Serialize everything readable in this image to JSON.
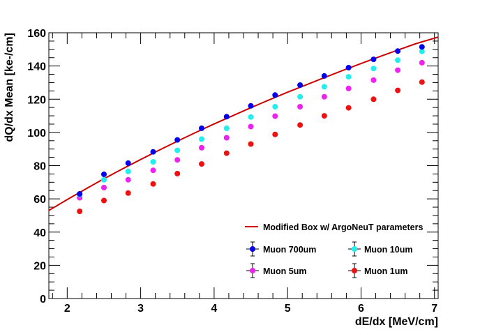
{
  "chart_data": {
    "type": "scatter",
    "xlabel": "dE/dx [MeV/cm]",
    "ylabel": "dQ/dx Mean [ke-/cm]",
    "xlim": [
      1.75,
      7.05
    ],
    "ylim": [
      0,
      160
    ],
    "x_ticks": [
      2,
      3,
      4,
      5,
      6,
      7
    ],
    "y_ticks": [
      0,
      20,
      40,
      60,
      80,
      100,
      120,
      140,
      160
    ],
    "x_tick_labels": [
      "2",
      "3",
      "4",
      "5",
      "6",
      "7"
    ],
    "y_tick_labels": [
      "0",
      "20",
      "40",
      "60",
      "80",
      "100",
      "120",
      "140",
      "160"
    ],
    "grid": false,
    "legend_position": "bottom-right",
    "model": {
      "name": "Modified Box w/ ArgoNeuT parameters",
      "color": "#cc0000",
      "x": [
        1.75,
        2.0,
        2.25,
        2.5,
        2.75,
        3.0,
        3.25,
        3.5,
        3.75,
        4.0,
        4.25,
        4.5,
        4.75,
        5.0,
        5.25,
        5.5,
        5.75,
        6.0,
        6.25,
        6.5,
        6.75,
        7.05
      ],
      "y": [
        53.0,
        59.6,
        65.9,
        72.1,
        78.0,
        83.7,
        89.3,
        94.7,
        100.0,
        105.1,
        110.0,
        114.9,
        119.6,
        124.2,
        128.6,
        133.0,
        137.3,
        141.5,
        145.6,
        149.6,
        153.5,
        157.4
      ]
    },
    "x": [
      2.17,
      2.5,
      2.83,
      3.17,
      3.5,
      3.83,
      4.17,
      4.5,
      4.83,
      5.17,
      5.5,
      5.83,
      6.17,
      6.5,
      6.83
    ],
    "series": [
      {
        "name": "Muon 700um",
        "color": "#0000ee",
        "values": [
          63.0,
          74.8,
          81.5,
          88.3,
          95.5,
          102.5,
          109.5,
          116.0,
          122.5,
          128.5,
          134.0,
          139.0,
          144.0,
          149.0,
          151.5
        ]
      },
      {
        "name": "Muon 10um",
        "color": "#22eeee",
        "values": [
          62.5,
          71.5,
          76.5,
          82.3,
          89.2,
          96.0,
          102.5,
          109.3,
          115.5,
          121.5,
          127.5,
          133.5,
          138.5,
          143.5,
          148.8
        ]
      },
      {
        "name": "Muon 5um",
        "color": "#ee22ee",
        "values": [
          60.7,
          66.8,
          71.5,
          77.2,
          83.5,
          90.8,
          96.8,
          103.5,
          109.8,
          115.5,
          121.5,
          126.5,
          131.5,
          137.5,
          142.0
        ]
      },
      {
        "name": "Muon 1um",
        "color": "#ee1111",
        "values": [
          52.5,
          59.0,
          63.5,
          69.0,
          75.2,
          81.0,
          87.5,
          93.0,
          98.8,
          104.5,
          110.0,
          114.8,
          120.0,
          125.3,
          130.3
        ]
      }
    ]
  }
}
